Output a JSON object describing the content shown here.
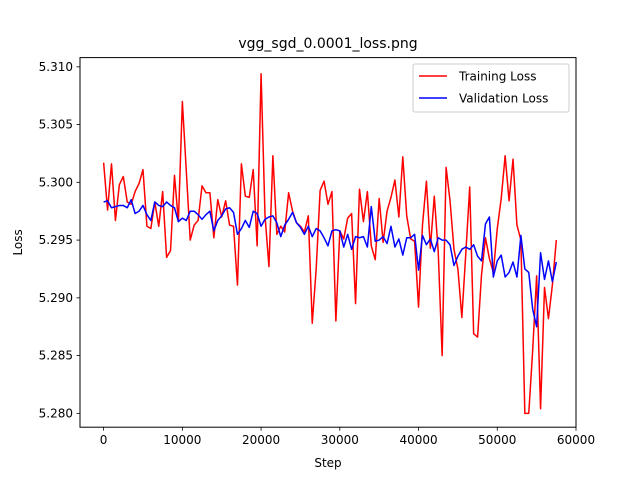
{
  "chart_data": {
    "type": "line",
    "title": "vgg_sgd_0.0001_loss.png",
    "xlabel": "Step",
    "ylabel": "Loss",
    "xlim": [
      -3000,
      60000
    ],
    "ylim": [
      5.2788,
      5.3108
    ],
    "xticks": [
      0,
      10000,
      20000,
      30000,
      40000,
      50000,
      60000
    ],
    "yticks": [
      5.28,
      5.285,
      5.29,
      5.295,
      5.3,
      5.305,
      5.31
    ],
    "grid": false,
    "legend_position": "top-right",
    "series": [
      {
        "name": "Training Loss",
        "color": "#ff0000",
        "x": [
          0,
          500,
          1000,
          1500,
          2000,
          2500,
          3000,
          3500,
          4000,
          4500,
          5000,
          5500,
          6000,
          6500,
          7000,
          7500,
          8000,
          8500,
          9000,
          9500,
          10000,
          10500,
          11000,
          11500,
          12000,
          12500,
          13000,
          13500,
          14000,
          14500,
          15000,
          15500,
          16000,
          16500,
          17000,
          17500,
          18000,
          18500,
          19000,
          19500,
          20000,
          20500,
          21000,
          21500,
          22000,
          22500,
          23000,
          23500,
          24000,
          24500,
          25000,
          25500,
          26000,
          26500,
          27000,
          27500,
          28000,
          28500,
          29000,
          29500,
          30000,
          30500,
          31000,
          31500,
          32000,
          32500,
          33000,
          33500,
          34000,
          34500,
          35000,
          35500,
          36000,
          36500,
          37000,
          37500,
          38000,
          38500,
          39000,
          39500,
          40000,
          40500,
          41000,
          41500,
          42000,
          42500,
          43000,
          43500,
          44000,
          44500,
          45000,
          45500,
          46000,
          46500,
          47000,
          47500,
          48000,
          48500,
          49000,
          49500,
          50000,
          50500,
          51000,
          51500,
          52000,
          52500,
          53000,
          53500,
          54000,
          54500,
          55000,
          55500,
          56000,
          56500,
          57000,
          57500
        ],
        "values": [
          5.3017,
          5.2976,
          5.3016,
          5.2967,
          5.2998,
          5.3005,
          5.2983,
          5.2981,
          5.2992,
          5.2999,
          5.3011,
          5.2962,
          5.296,
          5.2983,
          5.2962,
          5.2992,
          5.2935,
          5.2941,
          5.3006,
          5.2966,
          5.307,
          5.301,
          5.295,
          5.2963,
          5.2967,
          5.2997,
          5.2991,
          5.2991,
          5.2952,
          5.2985,
          5.297,
          5.2984,
          5.2963,
          5.2962,
          5.2911,
          5.3016,
          5.2988,
          5.2987,
          5.3011,
          5.2945,
          5.3094,
          5.2971,
          5.2927,
          5.3023,
          5.2955,
          5.2962,
          5.2957,
          5.2991,
          5.2975,
          5.2965,
          5.2962,
          5.2957,
          5.2971,
          5.2878,
          5.2925,
          5.2993,
          5.3001,
          5.2981,
          5.2992,
          5.288,
          5.2958,
          5.2951,
          5.2969,
          5.2973,
          5.2895,
          5.2994,
          5.2966,
          5.2992,
          5.2945,
          5.2933,
          5.2986,
          5.2948,
          5.2975,
          5.2987,
          5.3002,
          5.297,
          5.3022,
          5.2971,
          5.2951,
          5.2949,
          5.2892,
          5.2963,
          5.3001,
          5.2943,
          5.2988,
          5.294,
          5.285,
          5.3013,
          5.2984,
          5.2942,
          5.2925,
          5.2883,
          5.2938,
          5.2996,
          5.2869,
          5.2866,
          5.292,
          5.2952,
          5.2934,
          5.2922,
          5.296,
          5.2986,
          5.3023,
          5.2984,
          5.302,
          5.2963,
          5.295,
          5.28,
          5.28,
          5.2855,
          5.2919,
          5.2804,
          5.2909,
          5.2882,
          5.2911,
          5.295
        ]
      },
      {
        "name": "Validation Loss",
        "color": "#0000ff",
        "x": [
          0,
          500,
          1000,
          1500,
          2000,
          2500,
          3000,
          3500,
          4000,
          4500,
          5000,
          5500,
          6000,
          6500,
          7000,
          7500,
          8000,
          8500,
          9000,
          9500,
          10000,
          10500,
          11000,
          11500,
          12000,
          12500,
          13000,
          13500,
          14000,
          14500,
          15000,
          15500,
          16000,
          16500,
          17000,
          17500,
          18000,
          18500,
          19000,
          19500,
          20000,
          20500,
          21000,
          21500,
          22000,
          22500,
          23000,
          23500,
          24000,
          24500,
          25000,
          25500,
          26000,
          26500,
          27000,
          27500,
          28000,
          28500,
          29000,
          29500,
          30000,
          30500,
          31000,
          31500,
          32000,
          32500,
          33000,
          33500,
          34000,
          34500,
          35000,
          35500,
          36000,
          36500,
          37000,
          37500,
          38000,
          38500,
          39000,
          39500,
          40000,
          40500,
          41000,
          41500,
          42000,
          42500,
          43000,
          43500,
          44000,
          44500,
          45000,
          45500,
          46000,
          46500,
          47000,
          47500,
          48000,
          48500,
          49000,
          49500,
          50000,
          50500,
          51000,
          51500,
          52000,
          52500,
          53000,
          53500,
          54000,
          54500,
          55000,
          55500,
          56000,
          56500,
          57000,
          57500
        ],
        "values": [
          5.2983,
          5.2984,
          5.2978,
          5.2979,
          5.298,
          5.298,
          5.2978,
          5.2985,
          5.2973,
          5.2975,
          5.298,
          5.2972,
          5.2967,
          5.2983,
          5.298,
          5.2979,
          5.2983,
          5.298,
          5.2978,
          5.2966,
          5.2969,
          5.2967,
          5.2975,
          5.2975,
          5.2972,
          5.2968,
          5.2972,
          5.2975,
          5.2958,
          5.2967,
          5.2971,
          5.2977,
          5.2978,
          5.2974,
          5.2955,
          5.296,
          5.2967,
          5.2961,
          5.2975,
          5.2973,
          5.2962,
          5.2968,
          5.297,
          5.2971,
          5.2965,
          5.2953,
          5.2963,
          5.2968,
          5.2974,
          5.2965,
          5.2961,
          5.2955,
          5.2962,
          5.2953,
          5.296,
          5.2958,
          5.2952,
          5.2945,
          5.2958,
          5.2959,
          5.2958,
          5.2944,
          5.2955,
          5.2942,
          5.2953,
          5.2952,
          5.2953,
          5.2944,
          5.2979,
          5.2949,
          5.295,
          5.2953,
          5.2947,
          5.2962,
          5.2944,
          5.2951,
          5.2937,
          5.2952,
          5.2952,
          5.2955,
          5.2924,
          5.2954,
          5.2946,
          5.2951,
          5.294,
          5.2952,
          5.295,
          5.295,
          5.2946,
          5.2928,
          5.2936,
          5.2942,
          5.2944,
          5.2942,
          5.2946,
          5.2936,
          5.2932,
          5.2964,
          5.297,
          5.2918,
          5.2932,
          5.2937,
          5.2918,
          5.2922,
          5.2931,
          5.2918,
          5.2954,
          5.2925,
          5.2922,
          5.289,
          5.2875,
          5.2939,
          5.2916,
          5.2932,
          5.2914,
          5.2931
        ]
      }
    ]
  }
}
